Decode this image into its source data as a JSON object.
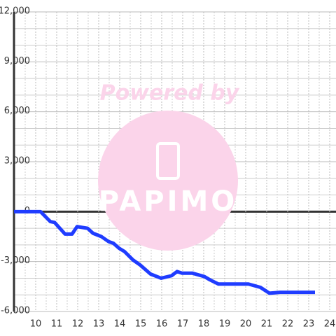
{
  "chart_data": {
    "type": "line",
    "annotations": [
      "Powered by",
      "PAPIMO"
    ],
    "x": [
      8.97,
      10.23,
      10.7,
      10.9,
      11.4,
      11.73,
      11.97,
      12.47,
      12.73,
      13.13,
      13.47,
      13.7,
      13.97,
      14.23,
      14.63,
      14.97,
      15.47,
      15.97,
      16.47,
      16.73,
      16.97,
      17.47,
      18.03,
      18.3,
      18.7,
      19.3,
      20.13,
      20.7,
      21.13,
      21.63,
      23.3
    ],
    "series": [
      {
        "color": "#1f3cff",
        "values": [
          0,
          0,
          -600,
          -650,
          -1350,
          -1350,
          -900,
          -1000,
          -1300,
          -1500,
          -1800,
          -1900,
          -2200,
          -2400,
          -2900,
          -3200,
          -3750,
          -4000,
          -3850,
          -3600,
          -3700,
          -3700,
          -3900,
          -4100,
          -4350,
          -4350,
          -4350,
          -4550,
          -4900,
          -4850,
          -4850
        ]
      }
    ],
    "xlim": [
      8.967,
      24.3
    ],
    "ylim": [
      -6000,
      12000
    ],
    "xticks": [
      10,
      11,
      12,
      13,
      14,
      15,
      16,
      17,
      18,
      19,
      20,
      21,
      22,
      23,
      24
    ],
    "yticks": [
      {
        "value": -6000,
        "label": "-6,000"
      },
      {
        "value": -3000,
        "label": "-3,000"
      },
      0,
      {
        "value": 3000,
        "label": "3,000"
      },
      {
        "value": 6000,
        "label": "6,000"
      },
      {
        "value": 9000,
        "label": "9,000"
      },
      {
        "value": 12000,
        "label": "12,000"
      }
    ],
    "grid": true
  }
}
